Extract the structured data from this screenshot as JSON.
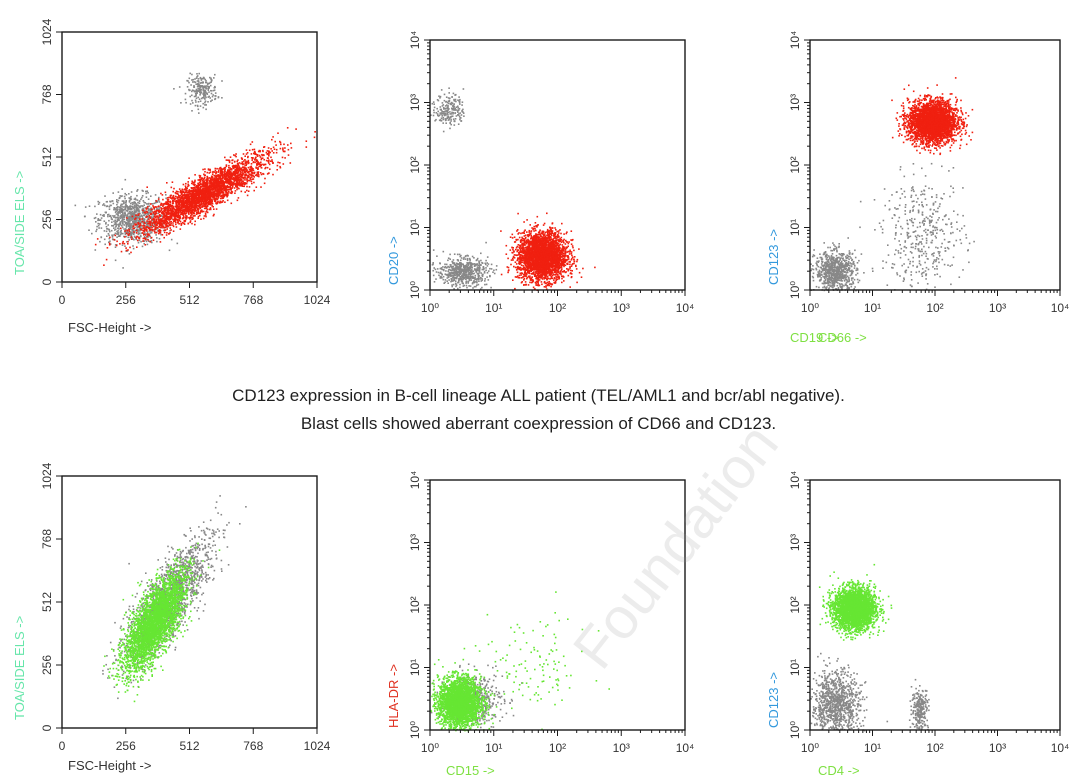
{
  "caption": {
    "line1": "CD123 expression in B-cell lineage ALL patient (TEL/AML1 and bcr/abl negative).",
    "line2": "Blast cells showed aberrant coexpression of CD66 and CD123."
  },
  "watermark": "Foundation",
  "chart_data": [
    {
      "type": "scatter",
      "xlabel": "FSC-Height ->",
      "ylabel": "TOA/SIDE ELS ->",
      "xlim": [
        0,
        1024
      ],
      "ylim": [
        0,
        1024
      ],
      "xscale": "linear",
      "yscale": "linear",
      "xticks": [
        "0",
        "256",
        "512",
        "768",
        "1024"
      ],
      "yticks": [
        "0",
        "256",
        "512",
        "768",
        "1024"
      ],
      "populations": [
        {
          "color": "#888888",
          "center": [
            280,
            260
          ],
          "spread": [
            120,
            90
          ],
          "count": 900
        },
        {
          "color": "#888888",
          "center": [
            560,
            790
          ],
          "spread": [
            55,
            55
          ],
          "count": 220
        },
        {
          "color": "#f02010",
          "center": [
            560,
            360
          ],
          "spread": [
            230,
            65
          ],
          "count": 3000
        }
      ]
    },
    {
      "type": "scatter",
      "xlabel": "CD19 ->",
      "ylabel": "CD20 ->",
      "xlim": [
        0,
        4
      ],
      "ylim": [
        0,
        4
      ],
      "xscale": "log",
      "yscale": "log",
      "xticks": [
        "10⁰",
        "10¹",
        "10²",
        "10³",
        "10⁴"
      ],
      "yticks": [
        "10⁰",
        "10¹",
        "10²",
        "10³",
        "10⁴"
      ],
      "populations": [
        {
          "color": "#888888",
          "center": [
            0.5,
            0.3
          ],
          "spread": [
            0.35,
            0.2
          ],
          "count": 600
        },
        {
          "color": "#888888",
          "center": [
            0.3,
            2.9
          ],
          "spread": [
            0.2,
            0.25
          ],
          "count": 200
        },
        {
          "color": "#f02010",
          "center": [
            1.75,
            0.55
          ],
          "spread": [
            0.35,
            0.35
          ],
          "count": 3000
        }
      ]
    },
    {
      "type": "scatter",
      "xlabel": "CD66 ->",
      "ylabel": "CD123 ->",
      "xlim": [
        0,
        4
      ],
      "ylim": [
        0,
        4
      ],
      "xscale": "log",
      "yscale": "log",
      "xticks": [
        "10⁰",
        "10¹",
        "10²",
        "10³",
        "10⁴"
      ],
      "yticks": [
        "10⁰",
        "10¹",
        "10²",
        "10³",
        "10⁴"
      ],
      "populations": [
        {
          "color": "#888888",
          "center": [
            0.4,
            0.3
          ],
          "spread": [
            0.3,
            0.3
          ],
          "count": 800
        },
        {
          "color": "#888888",
          "center": [
            1.8,
            0.9
          ],
          "spread": [
            0.6,
            0.8
          ],
          "count": 400
        },
        {
          "color": "#f02010",
          "center": [
            1.95,
            2.7
          ],
          "spread": [
            0.35,
            0.3
          ],
          "count": 3000
        }
      ]
    },
    {
      "type": "scatter",
      "xlabel": "FSC-Height ->",
      "ylabel": "TOA/SIDE ELS ->",
      "xlim": [
        0,
        1024
      ],
      "ylim": [
        0,
        1024
      ],
      "xscale": "linear",
      "yscale": "linear",
      "xticks": [
        "0",
        "256",
        "512",
        "768",
        "1024"
      ],
      "yticks": [
        "0",
        "256",
        "512",
        "768",
        "1024"
      ],
      "populations": [
        {
          "color": "#888888",
          "center": [
            420,
            520
          ],
          "spread": [
            160,
            170
          ],
          "count": 1600
        },
        {
          "color": "#66e633",
          "center": [
            370,
            430
          ],
          "spread": [
            110,
            150
          ],
          "count": 3200
        }
      ]
    },
    {
      "type": "scatter",
      "xlabel": "CD15 ->",
      "ylabel": "HLA-DR ->",
      "xlim": [
        0,
        4
      ],
      "ylim": [
        0,
        4
      ],
      "xscale": "log",
      "yscale": "log",
      "xticks": [
        "10⁰",
        "10¹",
        "10²",
        "10³",
        "10⁴"
      ],
      "yticks": [
        "10⁰",
        "10¹",
        "10²",
        "10³",
        "10⁴"
      ],
      "populations": [
        {
          "color": "#888888",
          "center": [
            0.7,
            0.5
          ],
          "spread": [
            0.4,
            0.4
          ],
          "count": 400
        },
        {
          "color": "#66e633",
          "center": [
            0.45,
            0.45
          ],
          "spread": [
            0.3,
            0.35
          ],
          "count": 2800
        },
        {
          "color": "#66e633",
          "center": [
            1.6,
            1.0
          ],
          "spread": [
            0.8,
            0.8
          ],
          "count": 120
        }
      ]
    },
    {
      "type": "scatter",
      "xlabel": "CD4 ->",
      "ylabel": "CD123 ->",
      "xlim": [
        0,
        4
      ],
      "ylim": [
        0,
        4
      ],
      "xscale": "log",
      "yscale": "log",
      "xticks": [
        "10⁰",
        "10¹",
        "10²",
        "10³",
        "10⁴"
      ],
      "yticks": [
        "10⁰",
        "10¹",
        "10²",
        "10³",
        "10⁴"
      ],
      "populations": [
        {
          "color": "#888888",
          "center": [
            0.4,
            0.4
          ],
          "spread": [
            0.35,
            0.5
          ],
          "count": 1000
        },
        {
          "color": "#888888",
          "center": [
            1.75,
            0.35
          ],
          "spread": [
            0.12,
            0.3
          ],
          "count": 250
        },
        {
          "color": "#66e633",
          "center": [
            0.7,
            1.95
          ],
          "spread": [
            0.3,
            0.3
          ],
          "count": 3000
        }
      ]
    }
  ]
}
